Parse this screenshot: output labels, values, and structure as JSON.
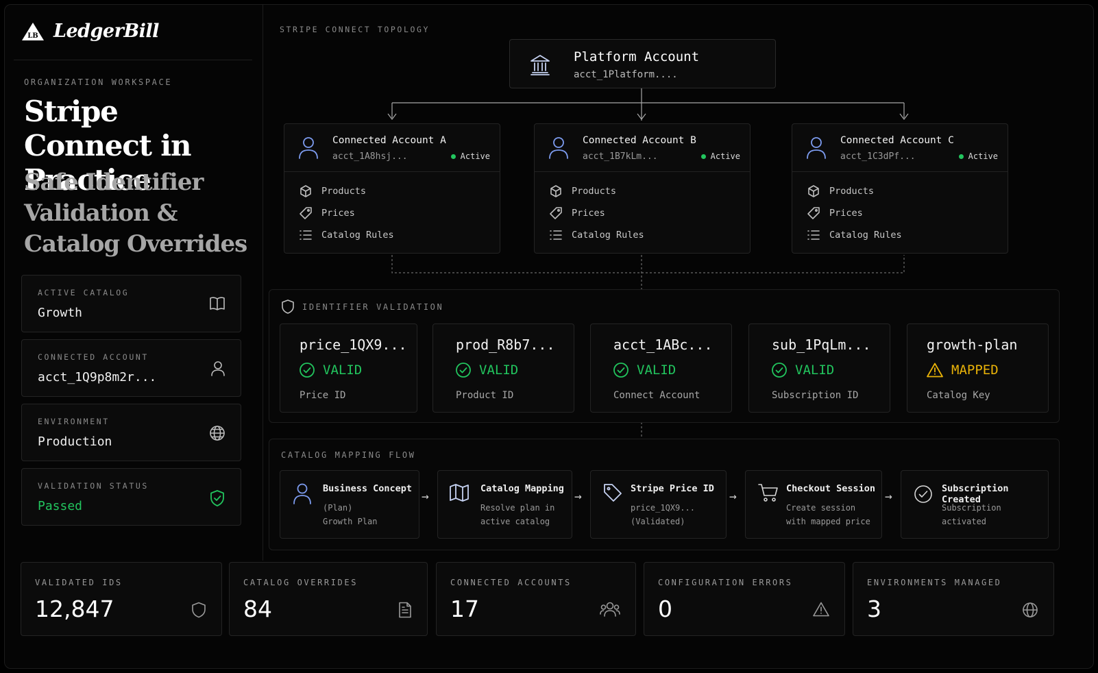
{
  "brand": {
    "logo_mark": "LB",
    "name": "LedgerBill"
  },
  "hero": {
    "eyebrow": "ORGANIZATION WORKSPACE",
    "title": "Stripe Connect in Practice",
    "subtitle": "Safe Identifier Validation & Catalog Overrides"
  },
  "sidebar_cards": [
    {
      "label": "ACTIVE CATALOG",
      "value": "Growth",
      "icon": "book-icon"
    },
    {
      "label": "CONNECTED ACCOUNT",
      "value": "acct_1Q9p8m2r...",
      "icon": "user-icon"
    },
    {
      "label": "ENVIRONMENT",
      "value": "Production",
      "icon": "globe-icon"
    },
    {
      "label": "VALIDATION STATUS",
      "value": "Passed",
      "icon": "shield-check-icon",
      "value_color": "#22c55e"
    }
  ],
  "topology": {
    "title": "STRIPE CONNECT TOPOLOGY",
    "platform": {
      "name": "Platform Account",
      "id": "acct_1Platform....",
      "icon": "bank-icon"
    },
    "accounts": [
      {
        "name": "Connected Account A",
        "id": "acct_1A8hsj...",
        "status": "Active"
      },
      {
        "name": "Connected Account B",
        "id": "acct_1B7kLm...",
        "status": "Active"
      },
      {
        "name": "Connected Account C",
        "id": "acct_1C3dPf...",
        "status": "Active"
      }
    ],
    "account_rows": [
      "Products",
      "Prices",
      "Catalog Rules"
    ]
  },
  "validation": {
    "title": "IDENTIFIER VALIDATION",
    "items": [
      {
        "id": "price_1QX9...",
        "status": "VALID",
        "label": "Price ID"
      },
      {
        "id": "prod_R8b7...",
        "status": "VALID",
        "label": "Product ID"
      },
      {
        "id": "acct_1ABc...",
        "status": "VALID",
        "label": "Connect Account"
      },
      {
        "id": "sub_1PqLm...",
        "status": "VALID",
        "label": "Subscription ID"
      },
      {
        "id": "growth-plan",
        "status": "MAPPED",
        "label": "Catalog Key"
      }
    ],
    "colors": {
      "valid": "#22c55e",
      "mapped": "#eab308"
    }
  },
  "flow": {
    "title": "CATALOG MAPPING FLOW",
    "steps": [
      {
        "title": "Business Concept",
        "sub": "(Plan)\nGrowth Plan",
        "icon": "user-icon"
      },
      {
        "title": "Catalog Mapping",
        "sub": "Resolve plan in\nactive catalog",
        "icon": "map-icon"
      },
      {
        "title": "Stripe Price ID",
        "sub": "price_1QX9...\n(Validated)",
        "icon": "tag-icon"
      },
      {
        "title": "Checkout Session",
        "sub": "Create session\nwith mapped price",
        "icon": "cart-icon"
      },
      {
        "title": "Subscription Created",
        "sub": "Subscription\nactivated",
        "icon": "check-circle-icon"
      }
    ],
    "arrow": "→"
  },
  "stats": [
    {
      "label": "VALIDATED IDS",
      "value": "12,847",
      "icon": "shield-icon"
    },
    {
      "label": "CATALOG OVERRIDES",
      "value": "84",
      "icon": "document-icon"
    },
    {
      "label": "CONNECTED ACCOUNTS",
      "value": "17",
      "icon": "users-icon"
    },
    {
      "label": "CONFIGURATION ERRORS",
      "value": "0",
      "icon": "warning-icon"
    },
    {
      "label": "ENVIRONMENTS MANAGED",
      "value": "3",
      "icon": "globe-icon"
    }
  ]
}
